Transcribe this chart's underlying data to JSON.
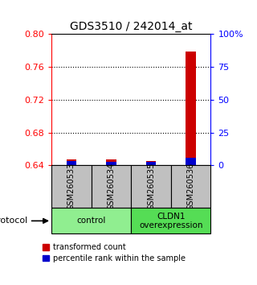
{
  "title": "GDS3510 / 242014_at",
  "samples": [
    "GSM260533",
    "GSM260534",
    "GSM260535",
    "GSM260536"
  ],
  "red_values": [
    0.6475,
    0.6468,
    0.6453,
    0.779
  ],
  "blue_values": [
    0.6455,
    0.6445,
    0.6445,
    0.649
  ],
  "ylim_left": [
    0.64,
    0.8
  ],
  "ylim_right": [
    0,
    100
  ],
  "yticks_left": [
    0.64,
    0.68,
    0.72,
    0.76,
    0.8
  ],
  "yticks_right": [
    0,
    25,
    50,
    75,
    100
  ],
  "ytick_labels_right": [
    "0",
    "25",
    "50",
    "75",
    "100%"
  ],
  "dotted_yticks": [
    0.68,
    0.72,
    0.76
  ],
  "groups": [
    {
      "label": "control",
      "samples": [
        0,
        1
      ],
      "color": "#90EE90"
    },
    {
      "label": "CLDN1\noverexpression",
      "samples": [
        2,
        3
      ],
      "color": "#55DD55"
    }
  ],
  "bar_width": 0.25,
  "red_color": "#CC0000",
  "blue_color": "#0000CC",
  "bg_color_sample": "#C0C0C0",
  "legend_red": "transformed count",
  "legend_blue": "percentile rank within the sample",
  "protocol_label": "protocol"
}
